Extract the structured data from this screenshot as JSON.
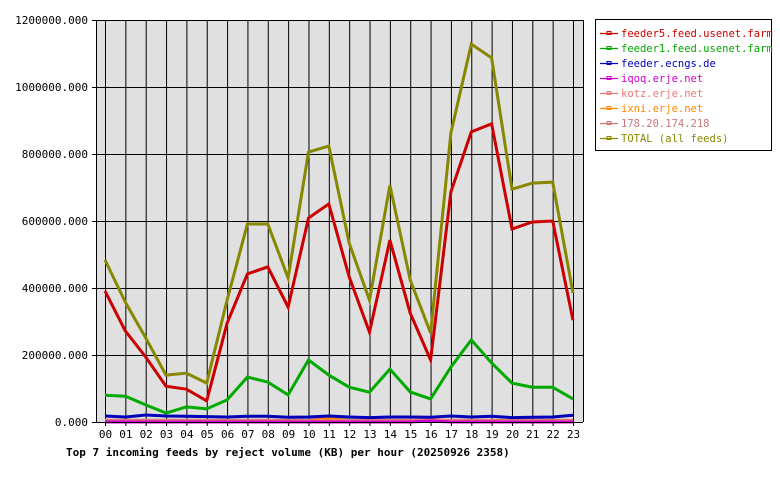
{
  "chart_data": {
    "type": "line",
    "title": "Top 7 incoming feeds by reject volume (KB) per hour (20250926 2358)",
    "xlabel": "",
    "ylabel": "",
    "ylim": [
      0,
      1200000
    ],
    "yticks": [
      "0.000",
      "200000.000",
      "400000.000",
      "600000.000",
      "800000.000",
      "1000000.000",
      "1200000.000"
    ],
    "grid": true,
    "legend_position": "right",
    "categories": [
      "00",
      "01",
      "02",
      "03",
      "04",
      "05",
      "06",
      "07",
      "08",
      "09",
      "10",
      "11",
      "12",
      "13",
      "14",
      "15",
      "16",
      "17",
      "18",
      "19",
      "20",
      "21",
      "22",
      "23"
    ],
    "series": [
      {
        "name": "feeder5.feed.usenet.farm",
        "color": "#cc0000",
        "values": [
          391000,
          272000,
          194000,
          107000,
          98000,
          63000,
          295000,
          442000,
          463000,
          343000,
          609000,
          651000,
          433000,
          268000,
          543000,
          325000,
          185000,
          687000,
          866000,
          890000,
          576000,
          597000,
          600000,
          304000
        ]
      },
      {
        "name": "feeder1.feed.usenet.farm",
        "color": "#00aa00",
        "values": [
          80000,
          77000,
          51000,
          27000,
          45000,
          39000,
          66000,
          134000,
          119000,
          81000,
          185000,
          140000,
          104000,
          89000,
          158000,
          90000,
          69000,
          164000,
          245000,
          176000,
          116000,
          104000,
          104000,
          69000
        ]
      },
      {
        "name": "feeder.ecngs.de",
        "color": "#0000bb",
        "values": [
          18000,
          15000,
          21000,
          18000,
          17000,
          16000,
          15000,
          17000,
          17000,
          14000,
          15000,
          18000,
          15000,
          13000,
          15000,
          15000,
          14000,
          18000,
          15000,
          17000,
          13000,
          14000,
          15000,
          20000
        ]
      },
      {
        "name": "iqoq.erje.net",
        "color": "#cc00cc",
        "values": [
          0,
          0,
          0,
          0,
          0,
          0,
          0,
          0,
          0,
          0,
          0,
          0,
          0,
          0,
          0,
          0,
          3000,
          0,
          0,
          0,
          0,
          0,
          0,
          0
        ]
      },
      {
        "name": "kotz.erje.net",
        "color": "#ee7777",
        "values": [
          3000,
          3000,
          3000,
          3000,
          3000,
          3000,
          3000,
          3000,
          3000,
          3000,
          3000,
          3000,
          3000,
          3000,
          3000,
          3000,
          8000,
          3000,
          3000,
          3000,
          3000,
          3000,
          3000,
          3000
        ]
      },
      {
        "name": "ixni.erje.net",
        "color": "#ff8800",
        "values": [
          2000,
          2000,
          2000,
          2000,
          2000,
          2000,
          2000,
          2000,
          2000,
          2000,
          2000,
          10000,
          2000,
          2000,
          2000,
          2000,
          2000,
          2000,
          2000,
          2000,
          2000,
          2000,
          2000,
          2000
        ]
      },
      {
        "name": "178.20.174.218",
        "color": "#cc7777",
        "values": [
          5000,
          5000,
          5000,
          5000,
          5000,
          5000,
          5000,
          5000,
          5000,
          5000,
          5000,
          15000,
          5000,
          5000,
          5000,
          5000,
          5000,
          5000,
          5000,
          5000,
          5000,
          5000,
          5000,
          5000
        ]
      },
      {
        "name": "TOTAL (all feeds)",
        "color": "#888800",
        "values": [
          484000,
          358000,
          251000,
          140000,
          146000,
          116000,
          364000,
          591000,
          591000,
          430000,
          806000,
          824000,
          534000,
          364000,
          707000,
          424000,
          266000,
          863000,
          1128000,
          1087000,
          695000,
          713000,
          716000,
          385000
        ]
      }
    ]
  },
  "colors": {
    "plot_background": "#e0e0e0",
    "grid": "#000000",
    "axis": "#000000"
  }
}
